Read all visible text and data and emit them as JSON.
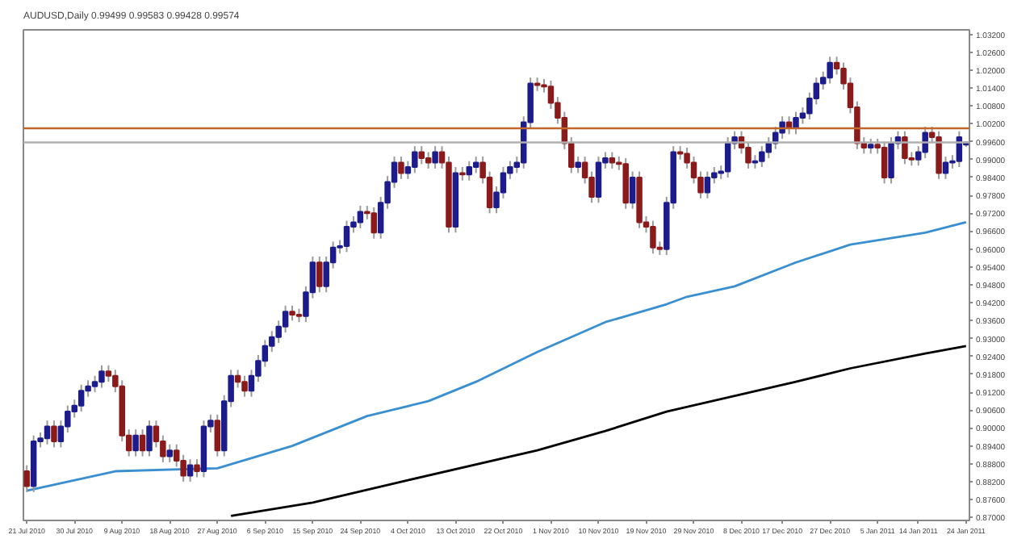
{
  "chart_data": {
    "type": "candlestick",
    "title": "AUDUSD,Daily 0.99499 0.99583 0.99428 0.99574",
    "categories": [
      "21 Jul 2010",
      null,
      null,
      null,
      null,
      null,
      null,
      "30 Jul 2010",
      null,
      null,
      null,
      null,
      null,
      null,
      "9 Aug 2010",
      null,
      null,
      null,
      null,
      null,
      null,
      "18 Aug 2010",
      null,
      null,
      null,
      null,
      null,
      null,
      "27 Aug 2010",
      null,
      null,
      null,
      null,
      null,
      null,
      "6 Sep 2010",
      null,
      null,
      null,
      null,
      null,
      null,
      "15 Sep 2010",
      null,
      null,
      null,
      null,
      null,
      null,
      "24 Sep 2010",
      null,
      null,
      null,
      null,
      null,
      null,
      "4 Oct 2010",
      null,
      null,
      null,
      null,
      null,
      null,
      "13 Oct 2010",
      null,
      null,
      null,
      null,
      null,
      null,
      "22 Oct 2010",
      null,
      null,
      null,
      null,
      null,
      null,
      "1 Nov 2010",
      null,
      null,
      null,
      null,
      null,
      null,
      "10 Nov 2010",
      null,
      null,
      null,
      null,
      null,
      null,
      "19 Nov 2010",
      null,
      null,
      null,
      null,
      null,
      null,
      "29 Nov 2010",
      null,
      null,
      null,
      null,
      null,
      null,
      "8 Dec 2010",
      null,
      null,
      null,
      null,
      null,
      "17 Dec 2010",
      null,
      null,
      null,
      null,
      null,
      null,
      "27 Dec 2010",
      null,
      null,
      null,
      null,
      null,
      null,
      "5 Jan 2011",
      null,
      null,
      null,
      null,
      null,
      "14 Jan 2011",
      null,
      null,
      null,
      null,
      null,
      null,
      "24 Jan 2011"
    ],
    "colors": [
      "#8b1a1a",
      "#1c1c8c",
      "#1c1c8c",
      "#1c1c8c",
      "#8b1a1a",
      "#1c1c8c",
      "#1c1c8c",
      "#1c1c8c",
      "#1c1c8c",
      "#1c1c8c",
      "#1c1c8c",
      "#1c1c8c",
      "#8b1a1a",
      "#8b1a1a",
      "#8b1a1a",
      "#8b1a1a",
      "#1c1c8c",
      "#8b1a1a",
      "#1c1c8c",
      "#8b1a1a",
      "#8b1a1a",
      "#1c1c8c",
      "#8b1a1a",
      "#8b1a1a",
      "#1c1c8c",
      "#8b1a1a",
      "#1c1c8c",
      "#1c1c8c",
      "#8b1a1a",
      "#1c1c8c",
      "#1c1c8c",
      "#8b1a1a",
      "#8b1a1a",
      "#1c1c8c",
      "#1c1c8c",
      "#1c1c8c",
      "#1c1c8c",
      "#1c1c8c",
      "#1c1c8c",
      "#8b1a1a",
      "#8b1a1a",
      "#1c1c8c",
      "#1c1c8c",
      "#8b1a1a",
      "#1c1c8c",
      "#1c1c8c",
      "#1c1c8c",
      "#1c1c8c",
      "#1c1c8c",
      "#1c1c8c",
      "#8b1a1a",
      "#8b1a1a",
      "#1c1c8c",
      "#1c1c8c",
      "#1c1c8c",
      "#8b1a1a",
      "#1c1c8c",
      "#1c1c8c",
      "#8b1a1a",
      "#8b1a1a",
      "#1c1c8c",
      "#8b1a1a",
      "#8b1a1a",
      "#1c1c8c",
      "#8b1a1a",
      "#1c1c8c",
      "#1c1c8c",
      "#8b1a1a",
      "#8b1a1a",
      "#1c1c8c",
      "#1c1c8c",
      "#1c1c8c",
      "#1c1c8c",
      "#1c1c8c",
      "#1c1c8c",
      "#8b1a1a",
      "#8b1a1a",
      "#8b1a1a",
      "#8b1a1a",
      "#8b1a1a",
      "#8b1a1a",
      "#1c1c8c",
      "#8b1a1a",
      "#8b1a1a",
      "#1c1c8c",
      "#1c1c8c",
      "#8b1a1a",
      "#8b1a1a",
      "#8b1a1a",
      "#1c1c8c",
      "#8b1a1a",
      "#8b1a1a",
      "#8b1a1a",
      "#8b1a1a",
      "#1c1c8c",
      "#1c1c8c",
      "#8b1a1a",
      "#8b1a1a",
      "#8b1a1a",
      "#8b1a1a",
      "#1c1c8c",
      "#1c1c8c",
      "#1c1c8c",
      "#1c1c8c",
      "#1c1c8c",
      "#8b1a1a",
      "#8b1a1a",
      "#1c1c8c",
      "#1c1c8c",
      "#1c1c8c",
      "#1c1c8c",
      "#1c1c8c",
      "#8b1a1a",
      "#1c1c8c",
      "#1c1c8c",
      "#1c1c8c",
      "#1c1c8c",
      "#1c1c8c",
      "#1c1c8c",
      "#8b1a1a",
      "#8b1a1a",
      "#8b1a1a",
      "#8b1a1a",
      "#8b1a1a",
      "#1c1c8c",
      "#8b1a1a",
      "#8b1a1a",
      "#1c1c8c",
      "#1c1c8c",
      "#8b1a1a",
      "#8b1a1a",
      "#1c1c8c",
      "#1c1c8c",
      "#8b1a1a",
      "#8b1a1a",
      "#1c1c8c",
      "#1c1c8c",
      "#1c1c8c",
      "#1c1c8c"
    ],
    "ohlc": [
      [
        0.8855,
        0.8875,
        0.8785,
        0.8805
      ],
      [
        0.8805,
        0.8975,
        0.8785,
        0.8955
      ],
      [
        0.8955,
        0.8985,
        0.8935,
        0.8965
      ],
      [
        0.8965,
        0.9025,
        0.8945,
        0.9005
      ],
      [
        0.9005,
        0.9025,
        0.8935,
        0.8955
      ],
      [
        0.8955,
        0.9025,
        0.8935,
        0.9005
      ],
      [
        0.9005,
        0.9075,
        0.8985,
        0.9055
      ],
      [
        0.9055,
        0.9095,
        0.9035,
        0.9075
      ],
      [
        0.9075,
        0.9145,
        0.9055,
        0.9125
      ],
      [
        0.9125,
        0.916,
        0.9105,
        0.914
      ],
      [
        0.914,
        0.9175,
        0.912,
        0.9155
      ],
      [
        0.9155,
        0.921,
        0.9135,
        0.919
      ],
      [
        0.919,
        0.921,
        0.9155,
        0.9175
      ],
      [
        0.9175,
        0.9195,
        0.912,
        0.914
      ],
      [
        0.914,
        0.916,
        0.8955,
        0.8975
      ],
      [
        0.8975,
        0.8995,
        0.8905,
        0.8925
      ],
      [
        0.8925,
        0.8995,
        0.8905,
        0.8975
      ],
      [
        0.8975,
        0.8995,
        0.8905,
        0.8925
      ],
      [
        0.8925,
        0.9025,
        0.8905,
        0.9005
      ],
      [
        0.9005,
        0.9025,
        0.8935,
        0.8955
      ],
      [
        0.8955,
        0.8975,
        0.8885,
        0.8905
      ],
      [
        0.8905,
        0.8945,
        0.8885,
        0.8925
      ],
      [
        0.8925,
        0.8945,
        0.887,
        0.889
      ],
      [
        0.889,
        0.891,
        0.882,
        0.884
      ],
      [
        0.884,
        0.8895,
        0.882,
        0.8875
      ],
      [
        0.8875,
        0.8895,
        0.8835,
        0.8855
      ],
      [
        0.8855,
        0.9025,
        0.8835,
        0.9005
      ],
      [
        0.9005,
        0.9045,
        0.8985,
        0.9025
      ],
      [
        0.9025,
        0.9045,
        0.8905,
        0.8925
      ],
      [
        0.8925,
        0.911,
        0.8905,
        0.909
      ],
      [
        0.909,
        0.9195,
        0.907,
        0.9175
      ],
      [
        0.9175,
        0.9195,
        0.9135,
        0.9155
      ],
      [
        0.9155,
        0.9175,
        0.9105,
        0.9125
      ],
      [
        0.9125,
        0.9195,
        0.9105,
        0.9175
      ],
      [
        0.9175,
        0.9245,
        0.9155,
        0.9225
      ],
      [
        0.9225,
        0.9295,
        0.9205,
        0.9275
      ],
      [
        0.9275,
        0.9325,
        0.9255,
        0.9305
      ],
      [
        0.9305,
        0.936,
        0.9285,
        0.934
      ],
      [
        0.934,
        0.941,
        0.932,
        0.939
      ],
      [
        0.939,
        0.941,
        0.936,
        0.938
      ],
      [
        0.938,
        0.94,
        0.9355,
        0.9375
      ],
      [
        0.9375,
        0.9475,
        0.9355,
        0.9455
      ],
      [
        0.9455,
        0.9575,
        0.9435,
        0.9555
      ],
      [
        0.9555,
        0.9575,
        0.9455,
        0.9475
      ],
      [
        0.9475,
        0.9575,
        0.9455,
        0.9555
      ],
      [
        0.9555,
        0.9625,
        0.9535,
        0.9605
      ],
      [
        0.9605,
        0.963,
        0.9585,
        0.961
      ],
      [
        0.961,
        0.9695,
        0.959,
        0.9675
      ],
      [
        0.9675,
        0.971,
        0.9655,
        0.969
      ],
      [
        0.969,
        0.9745,
        0.967,
        0.9725
      ],
      [
        0.9725,
        0.9745,
        0.97,
        0.972
      ],
      [
        0.972,
        0.974,
        0.9635,
        0.9655
      ],
      [
        0.9655,
        0.9775,
        0.9635,
        0.9755
      ],
      [
        0.9755,
        0.9845,
        0.9735,
        0.9825
      ],
      [
        0.9825,
        0.991,
        0.9805,
        0.989
      ],
      [
        0.989,
        0.991,
        0.9835,
        0.9855
      ],
      [
        0.9855,
        0.9895,
        0.9835,
        0.9875
      ],
      [
        0.9875,
        0.9945,
        0.9855,
        0.9925
      ],
      [
        0.9925,
        0.9945,
        0.9885,
        0.9905
      ],
      [
        0.9905,
        0.9925,
        0.987,
        0.989
      ],
      [
        0.989,
        0.9945,
        0.987,
        0.9925
      ],
      [
        0.9925,
        0.9945,
        0.987,
        0.989
      ],
      [
        0.989,
        0.991,
        0.9655,
        0.9675
      ],
      [
        0.9675,
        0.9875,
        0.9655,
        0.9855
      ],
      [
        0.9855,
        0.9875,
        0.983,
        0.985
      ],
      [
        0.985,
        0.9895,
        0.983,
        0.9875
      ],
      [
        0.9875,
        0.991,
        0.9855,
        0.989
      ],
      [
        0.989,
        0.991,
        0.982,
        0.984
      ],
      [
        0.984,
        0.986,
        0.972,
        0.974
      ],
      [
        0.974,
        0.981,
        0.972,
        0.979
      ],
      [
        0.979,
        0.9875,
        0.977,
        0.9855
      ],
      [
        0.9855,
        0.9895,
        0.9835,
        0.9875
      ],
      [
        0.9875,
        0.991,
        0.9855,
        0.989
      ],
      [
        0.989,
        1.0045,
        0.987,
        1.0025
      ],
      [
        1.0025,
        1.0175,
        1.0005,
        1.0155
      ],
      [
        1.0155,
        1.0175,
        1.013,
        1.015
      ],
      [
        1.015,
        1.017,
        1.0125,
        1.0145
      ],
      [
        1.0145,
        1.0165,
        1.007,
        1.009
      ],
      [
        1.009,
        1.011,
        1.002,
        1.004
      ],
      [
        1.004,
        1.006,
        0.9935,
        0.9955
      ],
      [
        0.9955,
        0.9975,
        0.9855,
        0.9875
      ],
      [
        0.9875,
        0.991,
        0.9855,
        0.989
      ],
      [
        0.989,
        0.991,
        0.982,
        0.984
      ],
      [
        0.984,
        0.986,
        0.9755,
        0.9775
      ],
      [
        0.9775,
        0.991,
        0.9755,
        0.989
      ],
      [
        0.989,
        0.9925,
        0.987,
        0.9905
      ],
      [
        0.9905,
        0.9925,
        0.987,
        0.989
      ],
      [
        0.989,
        0.991,
        0.9865,
        0.9885
      ],
      [
        0.9885,
        0.9905,
        0.9735,
        0.9755
      ],
      [
        0.9755,
        0.986,
        0.9735,
        0.984
      ],
      [
        0.984,
        0.986,
        0.967,
        0.969
      ],
      [
        0.969,
        0.971,
        0.9655,
        0.9675
      ],
      [
        0.9675,
        0.9695,
        0.9585,
        0.9605
      ],
      [
        0.9605,
        0.9625,
        0.958,
        0.96
      ],
      [
        0.96,
        0.9775,
        0.958,
        0.9755
      ],
      [
        0.9755,
        0.9945,
        0.9735,
        0.9925
      ],
      [
        0.9925,
        0.9945,
        0.99,
        0.992
      ],
      [
        0.992,
        0.994,
        0.987,
        0.989
      ],
      [
        0.989,
        0.991,
        0.982,
        0.984
      ],
      [
        0.984,
        0.986,
        0.977,
        0.979
      ],
      [
        0.979,
        0.986,
        0.977,
        0.984
      ],
      [
        0.984,
        0.9875,
        0.982,
        0.9855
      ],
      [
        0.9855,
        0.988,
        0.9835,
        0.986
      ],
      [
        0.986,
        0.9975,
        0.984,
        0.9955
      ],
      [
        0.9955,
        0.9995,
        0.9935,
        0.9975
      ],
      [
        0.9975,
        0.9995,
        0.992,
        0.994
      ],
      [
        0.994,
        0.996,
        0.987,
        0.989
      ],
      [
        0.989,
        0.9915,
        0.987,
        0.9895
      ],
      [
        0.9895,
        0.9945,
        0.9875,
        0.9925
      ],
      [
        0.9925,
        0.9975,
        0.9905,
        0.9955
      ],
      [
        0.9955,
        1.001,
        0.9935,
        0.999
      ],
      [
        0.999,
        1.0045,
        0.997,
        1.0025
      ],
      [
        1.0025,
        1.0045,
        0.9985,
        1.0005
      ],
      [
        1.0005,
        1.006,
        0.9985,
        1.004
      ],
      [
        1.004,
        1.0075,
        1.002,
        1.0055
      ],
      [
        1.0055,
        1.0125,
        1.0035,
        1.0105
      ],
      [
        1.0105,
        1.0175,
        1.0085,
        1.0155
      ],
      [
        1.0155,
        1.0195,
        1.0135,
        1.0175
      ],
      [
        1.0175,
        1.0245,
        1.0155,
        1.0225
      ],
      [
        1.0225,
        1.0245,
        1.0185,
        1.0205
      ],
      [
        1.0205,
        1.0225,
        1.0135,
        1.0155
      ],
      [
        1.0155,
        1.0175,
        1.0055,
        1.0075
      ],
      [
        1.0075,
        1.0095,
        0.9935,
        0.9955
      ],
      [
        0.9955,
        0.9975,
        0.992,
        0.994
      ],
      [
        0.994,
        0.997,
        0.992,
        0.995
      ],
      [
        0.995,
        0.997,
        0.992,
        0.994
      ],
      [
        0.994,
        0.996,
        0.982,
        0.984
      ],
      [
        0.984,
        0.9975,
        0.982,
        0.9955
      ],
      [
        0.9955,
        0.9995,
        0.9935,
        0.9975
      ],
      [
        0.9975,
        0.9995,
        0.9885,
        0.9905
      ],
      [
        0.9905,
        0.9925,
        0.988,
        0.99
      ],
      [
        0.99,
        0.9945,
        0.988,
        0.9925
      ],
      [
        0.9925,
        1.001,
        0.9905,
        0.999
      ],
      [
        0.999,
        1.001,
        0.9955,
        0.9975
      ],
      [
        0.9975,
        0.9995,
        0.9835,
        0.9855
      ],
      [
        0.9855,
        0.991,
        0.9835,
        0.989
      ],
      [
        0.989,
        0.9915,
        0.987,
        0.9895
      ],
      [
        0.9895,
        0.9995,
        0.9875,
        0.9975
      ],
      [
        0.99499,
        0.99583,
        0.99428,
        0.99574
      ]
    ],
    "series": [
      {
        "type": "line",
        "color": "#3a8fd0",
        "values": [
          0.879,
          null,
          null,
          null,
          null,
          null,
          null,
          null,
          null,
          null,
          null,
          null,
          null,
          0.8855,
          null,
          null,
          null,
          null,
          null,
          null,
          null,
          null,
          null,
          null,
          null,
          null,
          null,
          null,
          0.8865,
          null,
          null,
          null,
          null,
          null,
          null,
          null,
          null,
          null,
          null,
          0.894,
          null,
          null,
          null,
          null,
          null,
          null,
          null,
          null,
          null,
          null,
          0.904,
          null,
          null,
          null,
          null,
          null,
          null,
          null,
          null,
          0.909,
          null,
          null,
          null,
          null,
          null,
          null,
          0.9155,
          null,
          null,
          null,
          null,
          null,
          null,
          null,
          null,
          0.9255,
          null,
          null,
          null,
          null,
          null,
          null,
          null,
          null,
          null,
          0.9355,
          null,
          null,
          null,
          null,
          null,
          null,
          null,
          null,
          0.9415,
          null,
          null,
          0.944,
          null,
          null,
          null,
          null,
          null,
          null,
          0.9475,
          null,
          null,
          null,
          null,
          null,
          null,
          null,
          null,
          0.9555,
          null,
          null,
          null,
          null,
          null,
          null,
          null,
          0.9615,
          null,
          null,
          null,
          null,
          null,
          null,
          null,
          null,
          null,
          null,
          0.9655,
          null,
          null,
          null,
          null,
          null,
          0.969
        ]
      },
      {
        "type": "line",
        "color": "#000000",
        "values": [
          null,
          null,
          null,
          null,
          null,
          null,
          null,
          null,
          null,
          null,
          null,
          null,
          null,
          null,
          null,
          null,
          null,
          null,
          null,
          null,
          null,
          null,
          null,
          null,
          null,
          null,
          null,
          null,
          null,
          null,
          0.8705,
          null,
          null,
          null,
          null,
          null,
          null,
          null,
          null,
          null,
          null,
          null,
          0.875,
          null,
          null,
          null,
          null,
          null,
          null,
          null,
          null,
          null,
          null,
          null,
          null,
          null,
          0.8825,
          null,
          null,
          null,
          null,
          null,
          null,
          null,
          null,
          null,
          null,
          null,
          null,
          null,
          null,
          null,
          null,
          null,
          null,
          0.8925,
          null,
          null,
          null,
          null,
          null,
          null,
          null,
          null,
          null,
          0.899,
          null,
          null,
          null,
          null,
          null,
          null,
          null,
          null,
          0.9055,
          null,
          null,
          null,
          null,
          null,
          null,
          null,
          null,
          null,
          null,
          null,
          null,
          null,
          null,
          null,
          null,
          null,
          null,
          0.9155,
          null,
          null,
          null,
          null,
          null,
          null,
          null,
          0.92,
          null,
          null,
          null,
          null,
          null,
          null,
          null,
          null,
          null,
          null,
          0.925,
          null,
          null,
          null,
          null,
          null,
          0.9275
        ]
      }
    ],
    "ref_lines": [
      {
        "axis": "y",
        "value": 1.0005,
        "color": "#c0662a"
      },
      {
        "axis": "y",
        "value": 0.99574,
        "color": "#b0b0b0"
      }
    ],
    "ylim": [
      0.869,
      1.0335
    ],
    "yticks": [
      {
        "value": 0.87,
        "label": "0.87000"
      },
      {
        "value": 0.876,
        "label": "0.87600"
      },
      {
        "value": 0.882,
        "label": "0.88200"
      },
      {
        "value": 0.888,
        "label": "0.88800"
      },
      {
        "value": 0.894,
        "label": "0.89400"
      },
      {
        "value": 0.9,
        "label": "0.90000"
      },
      {
        "value": 0.906,
        "label": "0.90600"
      },
      {
        "value": 0.912,
        "label": "0.91200"
      },
      {
        "value": 0.918,
        "label": "0.91800"
      },
      {
        "value": 0.924,
        "label": "0.92400"
      },
      {
        "value": 0.93,
        "label": "0.93000"
      },
      {
        "value": 0.936,
        "label": "0.93600"
      },
      {
        "value": 0.942,
        "label": "0.94200"
      },
      {
        "value": 0.948,
        "label": "0.94800"
      },
      {
        "value": 0.954,
        "label": "0.95400"
      },
      {
        "value": 0.96,
        "label": "0.96000"
      },
      {
        "value": 0.966,
        "label": "0.96600"
      },
      {
        "value": 0.972,
        "label": "0.97200"
      },
      {
        "value": 0.978,
        "label": "0.97800"
      },
      {
        "value": 0.984,
        "label": "0.98400"
      },
      {
        "value": 0.99,
        "label": "0.99000"
      },
      {
        "value": 0.996,
        "label": "0.99600"
      },
      {
        "value": 1.002,
        "label": "1.00200"
      },
      {
        "value": 1.008,
        "label": "1.00800"
      },
      {
        "value": 1.014,
        "label": "1.01400"
      },
      {
        "value": 1.02,
        "label": "1.02000"
      },
      {
        "value": 1.026,
        "label": "1.02600"
      },
      {
        "value": 1.032,
        "label": "1.03200"
      }
    ],
    "grid": false
  }
}
